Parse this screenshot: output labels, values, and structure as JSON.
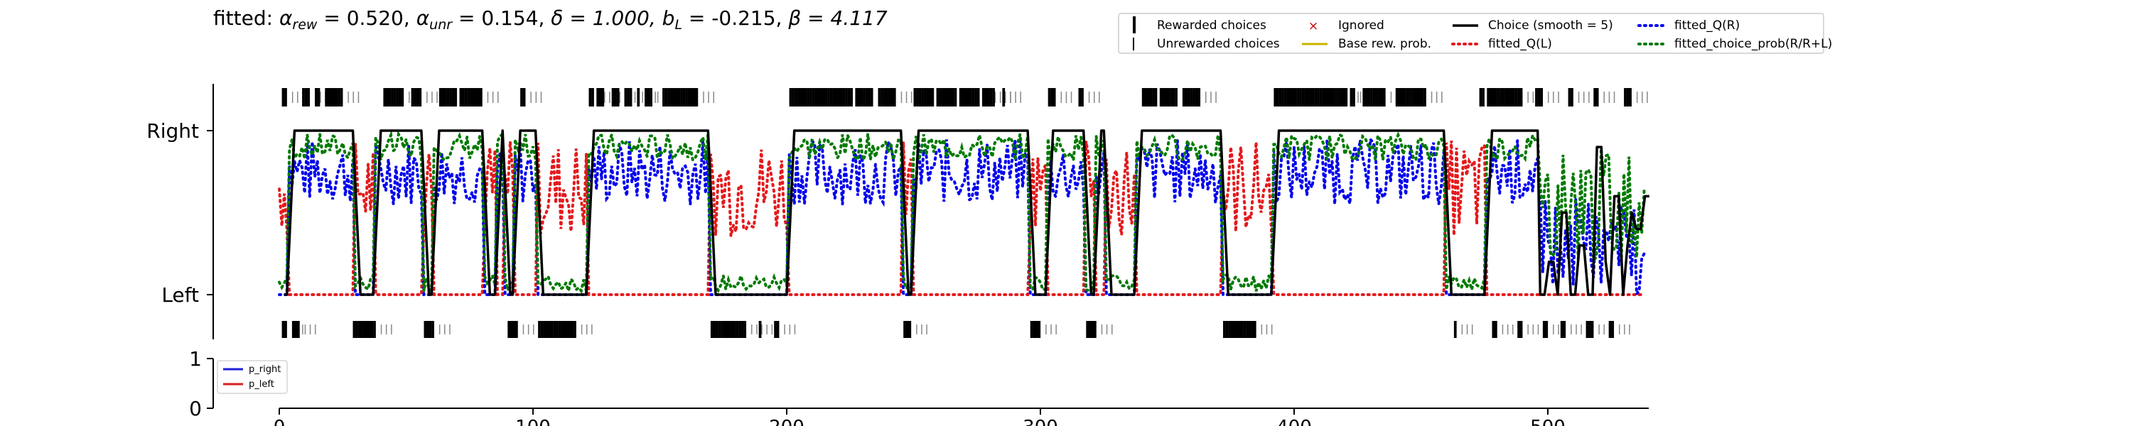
{
  "chart_data": [
    {
      "type": "line",
      "title": "fitted: αrew = 0.520, αunr = 0.154, δ = 1.000, bL = -0.215, β = 4.117",
      "title_parts": {
        "prefix": "fitted: ",
        "alpha_rew_label": "α",
        "alpha_rew_sub": "rew",
        "alpha_rew_value": " = 0.520, ",
        "alpha_unr_label": "α",
        "alpha_unr_sub": "unr",
        "alpha_unr_value": " = 0.154, ",
        "delta_part": "δ = 1.000, ",
        "bL_label": "b",
        "bL_sub": "L",
        "bL_value": " = -0.215, ",
        "beta_part": "β = 4.117"
      },
      "yticks": [
        "Left",
        "Right"
      ],
      "ylim": [
        -0.15,
        1.15
      ],
      "xlim": [
        0,
        540
      ],
      "legend": {
        "position": "top-right",
        "entries": [
          "Rewarded choices",
          "Unrewarded choices",
          "Ignored",
          "Base rew. prob.",
          "Choice (smooth = 5)",
          "fitted_Q(L)",
          "fitted_Q(R)",
          "fitted_choice_prob(R/R+L)"
        ]
      },
      "n_trials": 540,
      "choice_segments": [
        {
          "from": 0,
          "to": 4,
          "choice": "L"
        },
        {
          "from": 4,
          "to": 12,
          "choice": "R"
        },
        {
          "from": 12,
          "to": 30,
          "choice": "R"
        },
        {
          "from": 30,
          "to": 38,
          "choice": "L"
        },
        {
          "from": 38,
          "to": 57,
          "choice": "R"
        },
        {
          "from": 57,
          "to": 61,
          "choice": "L"
        },
        {
          "from": 61,
          "to": 81,
          "choice": "R"
        },
        {
          "from": 81,
          "to": 86,
          "choice": "L"
        },
        {
          "from": 86,
          "to": 89,
          "choice": "R"
        },
        {
          "from": 89,
          "to": 93,
          "choice": "L"
        },
        {
          "from": 93,
          "to": 102,
          "choice": "R"
        },
        {
          "from": 102,
          "to": 122,
          "choice": "L"
        },
        {
          "from": 122,
          "to": 170,
          "choice": "R"
        },
        {
          "from": 170,
          "to": 201,
          "choice": "L"
        },
        {
          "from": 201,
          "to": 246,
          "choice": "R"
        },
        {
          "from": 246,
          "to": 250,
          "choice": "L"
        },
        {
          "from": 250,
          "to": 296,
          "choice": "R"
        },
        {
          "from": 296,
          "to": 303,
          "choice": "L"
        },
        {
          "from": 303,
          "to": 318,
          "choice": "R"
        },
        {
          "from": 318,
          "to": 322,
          "choice": "L"
        },
        {
          "from": 322,
          "to": 326,
          "choice": "R"
        },
        {
          "from": 326,
          "to": 338,
          "choice": "L"
        },
        {
          "from": 338,
          "to": 372,
          "choice": "R"
        },
        {
          "from": 372,
          "to": 392,
          "choice": "L"
        },
        {
          "from": 392,
          "to": 460,
          "choice": "R"
        },
        {
          "from": 460,
          "to": 476,
          "choice": "L"
        },
        {
          "from": 476,
          "to": 497,
          "choice": "R"
        },
        {
          "from": 497,
          "to": 540,
          "choice": "mixed"
        }
      ],
      "reward_blocks": {
        "right": [
          [
            1,
            3
          ],
          [
            9,
            12
          ],
          [
            14,
            16
          ],
          [
            18,
            25
          ],
          [
            41,
            49
          ],
          [
            52,
            56
          ],
          [
            63,
            70
          ],
          [
            71,
            80
          ],
          [
            95,
            97
          ],
          [
            122,
            124
          ],
          [
            125,
            128
          ],
          [
            131,
            134
          ],
          [
            136,
            139
          ],
          [
            141,
            142
          ],
          [
            144,
            147
          ],
          [
            151,
            165
          ],
          [
            201,
            226
          ],
          [
            227,
            234
          ],
          [
            236,
            243
          ],
          [
            250,
            258
          ],
          [
            259,
            267
          ],
          [
            268,
            276
          ],
          [
            277,
            282
          ],
          [
            285,
            286
          ],
          [
            303,
            306
          ],
          [
            315,
            317
          ],
          [
            340,
            346
          ],
          [
            347,
            354
          ],
          [
            356,
            363
          ],
          [
            392,
            421
          ],
          [
            422,
            424
          ],
          [
            427,
            436
          ],
          [
            440,
            452
          ],
          [
            473,
            475
          ],
          [
            476,
            490
          ],
          [
            495,
            498
          ],
          [
            508,
            510
          ],
          [
            518,
            520
          ],
          [
            530,
            533
          ]
        ],
        "left": [
          [
            1,
            3
          ],
          [
            5,
            8
          ],
          [
            29,
            38
          ],
          [
            57,
            61
          ],
          [
            90,
            94
          ],
          [
            102,
            117
          ],
          [
            170,
            184
          ],
          [
            189,
            190
          ],
          [
            195,
            197
          ],
          [
            246,
            249
          ],
          [
            296,
            300
          ],
          [
            318,
            322
          ],
          [
            372,
            385
          ],
          [
            463,
            464
          ],
          [
            478,
            480
          ],
          [
            488,
            490
          ],
          [
            498,
            500
          ],
          [
            505,
            507
          ],
          [
            515,
            518
          ],
          [
            524,
            526
          ]
        ]
      }
    },
    {
      "type": "line",
      "title": "",
      "xlabel": "",
      "ylabel": "",
      "xlim": [
        0,
        540
      ],
      "ylim": [
        0,
        1
      ],
      "xticks": [
        "0",
        "100",
        "200",
        "300",
        "400",
        "500"
      ],
      "yticks": [
        "0",
        "1"
      ],
      "legend": {
        "position": "top-left",
        "entries": [
          "p_right",
          "p_left"
        ]
      },
      "series": [
        {
          "name": "p_right",
          "color": "#1f1fd6",
          "values": []
        },
        {
          "name": "p_left",
          "color": "#d62020",
          "values": []
        }
      ]
    }
  ],
  "colors": {
    "q_left": "#e41a1c",
    "q_right": "#0000ee",
    "choice_prob": "#007a00",
    "choice_line": "#000000",
    "base_prob": "#c8b400",
    "ignored": "#cc0000",
    "p_right": "#1f1fd6",
    "p_left": "#d62020"
  },
  "legend_markers": {
    "ignored": "×"
  }
}
